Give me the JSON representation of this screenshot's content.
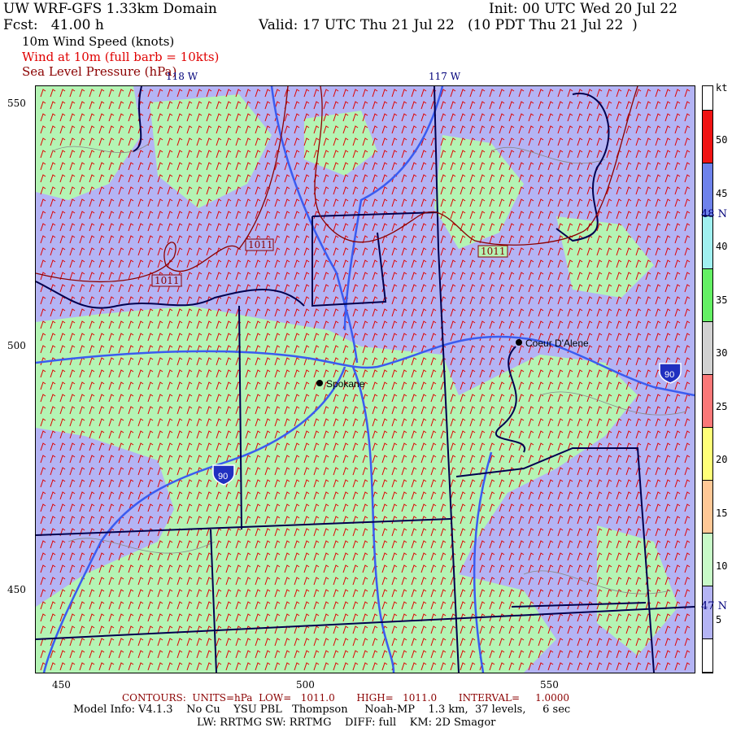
{
  "header": {
    "title": "UW WRF-GFS 1.33km Domain",
    "init": "Init: 00 UTC Wed 20 Jul 22",
    "fcst": "Fcst:   41.00 h",
    "valid": "Valid: 17 UTC Thu 21 Jul 22   (10 PDT Thu 21 Jul 22  )",
    "field1": "10m Wind Speed (knots)",
    "field2": "Wind at 10m (full barb = 10kts)",
    "field3": "Sea Level Pressure (hPa)"
  },
  "colors": {
    "field2": "#e00000",
    "field3": "#8b0000",
    "lavender": "#b4b4f4",
    "green": "#b4f4b4",
    "barb": "#e00000",
    "river": "#3a5cf0",
    "border": "#000050",
    "contour": "#8b0000"
  },
  "map": {
    "lon_labels": [
      "118 W",
      "117 W"
    ],
    "lat_labels": [
      "48 N",
      "47 N"
    ],
    "y_ticks": [
      "550",
      "500",
      "450"
    ],
    "x_ticks": [
      "450",
      "500",
      "550"
    ],
    "cities": [
      "Spokane",
      "Coeur D'Alene"
    ],
    "highway_label": "90",
    "contour_labels": [
      "1011",
      "1011",
      "1011"
    ]
  },
  "colorbar": {
    "unit": "kt",
    "labels": [
      "50",
      "45",
      "40",
      "35",
      "30",
      "25",
      "20",
      "15",
      "10",
      "5"
    ],
    "colors": [
      "#ffffff",
      "#f01414",
      "#6e82eb",
      "#a0f0f0",
      "#64f064",
      "#d2d2d2",
      "#fa7878",
      "#ffff78",
      "#ffc896",
      "#c8fac8",
      "#b4b4f4",
      "#ffffff"
    ]
  },
  "footer": {
    "contours": "CONTOURS:  UNITS=hPa  LOW=   1011.0       HIGH=   1011.0       INTERVAL=     1.0000",
    "model": "Model Info: V4.1.3    No Cu    YSU PBL   Thompson     Noah-MP    1.3 km,  37 levels,     6 sec",
    "model2": "LW: RRTMG SW: RRTMG    DIFF: full    KM: 2D Smagor"
  }
}
